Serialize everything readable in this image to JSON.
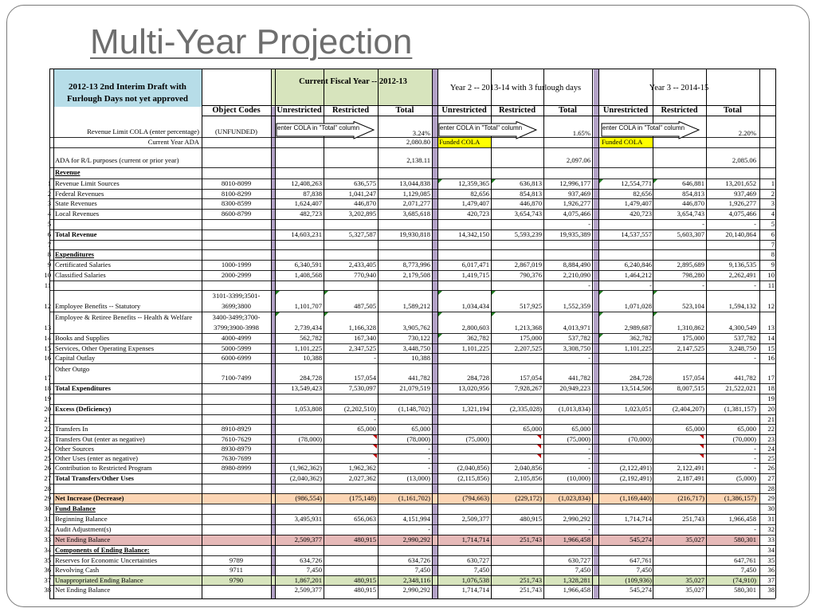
{
  "slide": {
    "title": "Multi-Year Projection"
  },
  "header": {
    "draft_title": "2012-13 2nd Interim Draft with Furlough Days not yet approved",
    "year1": "Current Fiscal Year -- 2012-13",
    "year2": "Year 2 -- 2013-14 with 3 furlough days",
    "year3": "Year 3 -- 2014-15",
    "object_codes": "Object Codes",
    "col_unrestricted": "Unrestricted",
    "col_restricted": "Restricted",
    "col_total": "Total",
    "col_unrestricted_y2": "Unrestricted",
    "col_restricted_y2": "Restricted",
    "col_total_y2": "Total",
    "col_unrestricted_y3": "Unrestricted",
    "col_restricted_y3": "Restricted",
    "col_total_y3": "Total"
  },
  "callouts": {
    "y1": "enter COLA in \"Total\" column",
    "y2": "enter COLA in \"Total\" column",
    "y3": "enter COLA in \"Total\" column"
  },
  "colors": {
    "header_blue": "#b7dde8",
    "header_green": "#d7e4bd",
    "divider_purple": "#b3a2c7",
    "yellow": "#ffff00",
    "orange": "#fcd5b4",
    "pink": "#e6b9b8",
    "green_row": "#d7e4bd",
    "title_gray": "#6e6e6e"
  },
  "rows": [
    {
      "label": "Revenue Limit COLA (enter percentage)",
      "code": "(UNFUNDED)",
      "v": [
        "",
        "",
        "3.24%",
        "",
        "",
        "1.65%",
        "",
        "",
        "2.20%"
      ]
    },
    {
      "label": "Current Year ADA",
      "code": "",
      "v": [
        "",
        "",
        "2,080.80",
        "Funded COLA",
        "",
        "",
        "Funded COLA",
        "",
        ""
      ]
    },
    {
      "label": "ADA for R/L purposes (current or prior year)",
      "code": "",
      "v": [
        "",
        "",
        "2,138.11",
        "",
        "",
        "2,097.06",
        "",
        "",
        "2,085.06"
      ]
    },
    {
      "label": "Revenue",
      "code": "",
      "v": [
        "",
        "",
        "",
        "",
        "",
        "",
        "",
        "",
        ""
      ]
    },
    {
      "num": "1",
      "label": "Revenue Limit Sources",
      "code": "8010-8099",
      "v": [
        "12,408,263",
        "636,575",
        "13,044,838",
        "12,359,365",
        "636,813",
        "12,996,177",
        "12,554,771",
        "646,881",
        "13,201,652"
      ]
    },
    {
      "num": "2",
      "label": "Federal Revenues",
      "code": "8100-8299",
      "v": [
        "87,838",
        "1,041,247",
        "1,129,085",
        "82,656",
        "854,813",
        "937,469",
        "82,656",
        "854,813",
        "937,469"
      ]
    },
    {
      "num": "3",
      "label": "State Revenues",
      "code": "8300-8599",
      "v": [
        "1,624,407",
        "446,870",
        "2,071,277",
        "1,479,407",
        "446,870",
        "1,926,277",
        "1,479,407",
        "446,870",
        "1,926,277"
      ]
    },
    {
      "num": "4",
      "label": "Local Revenues",
      "code": "8600-8799",
      "v": [
        "482,723",
        "3,202,895",
        "3,685,618",
        "420,723",
        "3,654,743",
        "4,075,466",
        "420,723",
        "3,654,743",
        "4,075,466"
      ]
    },
    {
      "num": "5",
      "label": "",
      "code": "",
      "v": [
        "",
        "",
        "",
        "",
        "",
        "-",
        "",
        "-",
        "-"
      ]
    },
    {
      "num": "6",
      "label": "Total Revenue",
      "code": "",
      "v": [
        "14,603,231",
        "5,327,587",
        "19,930,818",
        "14,342,150",
        "5,593,239",
        "19,935,389",
        "14,537,557",
        "5,603,307",
        "20,140,864"
      ]
    },
    {
      "num": "7",
      "label": "",
      "code": "",
      "v": [
        "",
        "",
        "",
        "",
        "",
        "",
        "",
        "",
        ""
      ]
    },
    {
      "num": "8",
      "label": "Expenditures",
      "code": "",
      "v": [
        "",
        "",
        "",
        "",
        "",
        "",
        "",
        "",
        ""
      ]
    },
    {
      "num": "9",
      "label": "Certificated Salaries",
      "code": "1000-1999",
      "v": [
        "6,340,591",
        "2,433,405",
        "8,773,996",
        "6,017,471",
        "2,867,019",
        "8,884,490",
        "6,240,846",
        "2,895,689",
        "9,136,535"
      ]
    },
    {
      "num": "10",
      "label": "Classified Salaries",
      "code": "2000-2999",
      "v": [
        "1,408,568",
        "770,940",
        "2,179,508",
        "1,419,715",
        "790,376",
        "2,210,090",
        "1,464,212",
        "798,280",
        "2,262,491"
      ]
    },
    {
      "num": "11",
      "label": "",
      "code": "",
      "v": [
        "",
        "",
        "",
        "",
        "",
        "-",
        "-",
        "-",
        "-"
      ]
    },
    {
      "num": "12",
      "label": "Employee Benefits -- Statutory",
      "code": "3101-3399;3501-3699;3800",
      "v": [
        "1,101,707",
        "487,505",
        "1,589,212",
        "1,034,434",
        "517,925",
        "1,552,359",
        "1,071,028",
        "523,104",
        "1,594,132"
      ]
    },
    {
      "num": "13",
      "label": "Employee & Retiree Benefits -- Health & Welfare",
      "code": "3400-3499;3700-3799;3900-3998",
      "v": [
        "2,739,434",
        "1,166,328",
        "3,905,762",
        "2,800,603",
        "1,213,368",
        "4,013,971",
        "2,989,687",
        "1,310,862",
        "4,300,549"
      ]
    },
    {
      "num": "14",
      "label": "Books and Supplies",
      "code": "4000-4999",
      "v": [
        "562,782",
        "167,340",
        "730,122",
        "362,782",
        "175,000",
        "537,782",
        "362,782",
        "175,000",
        "537,782"
      ]
    },
    {
      "num": "15",
      "label": "Services, Other Operating Expenses",
      "code": "5000-5999",
      "v": [
        "1,101,225",
        "2,347,525",
        "3,448,750",
        "1,101,225",
        "2,207,525",
        "3,308,750",
        "1,101,225",
        "2,147,525",
        "3,248,750"
      ]
    },
    {
      "num": "16",
      "label": "Capital Outlay",
      "code": "6000-6999",
      "v": [
        "10,388",
        "-",
        "10,388",
        "",
        "",
        "-",
        "",
        "",
        "-"
      ]
    },
    {
      "num": "17",
      "label": "Other Outgo",
      "code": "7100-7499",
      "v": [
        "284,728",
        "157,054",
        "441,782",
        "284,728",
        "157,054",
        "441,782",
        "284,728",
        "157,054",
        "441,782"
      ]
    },
    {
      "num": "18",
      "label": "Total Expenditures",
      "code": "",
      "v": [
        "13,549,423",
        "7,530,097",
        "21,079,519",
        "13,020,956",
        "7,928,267",
        "20,949,223",
        "13,514,506",
        "8,007,515",
        "21,522,021"
      ]
    },
    {
      "num": "19",
      "label": "",
      "code": "",
      "v": [
        "",
        "",
        "",
        "",
        "",
        "",
        "",
        "",
        ""
      ]
    },
    {
      "num": "20",
      "label": "Excess (Deficiency)",
      "code": "",
      "v": [
        "1,053,808",
        "(2,202,510)",
        "(1,148,702)",
        "1,321,194",
        "(2,335,028)",
        "(1,013,834)",
        "1,023,051",
        "(2,404,207)",
        "(1,381,157)"
      ]
    },
    {
      "num": "21",
      "label": "",
      "code": "",
      "v": [
        "",
        "-",
        "",
        "",
        "",
        "",
        "",
        "",
        ""
      ]
    },
    {
      "num": "22",
      "label": "Transfers In",
      "code": "8910-8929",
      "v": [
        "",
        "65,000",
        "65,000",
        "",
        "65,000",
        "65,000",
        "",
        "65,000",
        "65,000"
      ]
    },
    {
      "num": "23",
      "label": "Transfers Out (enter as negative)",
      "code": "7610-7629",
      "v": [
        "(78,000)",
        "",
        "(78,000)",
        "(75,000)",
        "",
        "(75,000)",
        "(70,000)",
        "",
        "(70,000)"
      ]
    },
    {
      "num": "24",
      "label": "Other Sources",
      "code": "8930-8979",
      "v": [
        "",
        "",
        "-",
        "",
        "",
        "-",
        "",
        "",
        "-"
      ]
    },
    {
      "num": "25",
      "label": "Other Uses (enter as negative)",
      "code": "7630-7699",
      "v": [
        "",
        "",
        "-",
        "",
        "",
        "-",
        "",
        "",
        "-"
      ]
    },
    {
      "num": "26",
      "label": "Contribution to Restricted Program",
      "code": "8980-8999",
      "v": [
        "(1,962,362)",
        "1,962,362",
        "-",
        "(2,040,856)",
        "2,040,856",
        "-",
        "(2,122,491)",
        "2,122,491",
        "-"
      ]
    },
    {
      "num": "27",
      "label": "Total Transfers/Other Uses",
      "code": "",
      "v": [
        "(2,040,362)",
        "2,027,362",
        "(13,000)",
        "(2,115,856)",
        "2,105,856",
        "(10,000)",
        "(2,192,491)",
        "2,187,491",
        "(5,000)"
      ]
    },
    {
      "num": "28",
      "label": "",
      "code": "",
      "v": [
        "",
        "",
        "",
        "",
        "",
        "",
        "",
        "",
        ""
      ]
    },
    {
      "num": "29",
      "label": "Net Increase (Decrease)",
      "code": "",
      "v": [
        "(986,554)",
        "(175,148)",
        "(1,161,702)",
        "(794,663)",
        "(229,172)",
        "(1,023,834)",
        "(1,169,440)",
        "(216,717)",
        "(1,386,157)"
      ]
    },
    {
      "num": "30",
      "label": "Fund Balance",
      "code": "",
      "v": [
        "",
        "",
        "",
        "",
        "",
        "",
        "",
        "",
        ""
      ]
    },
    {
      "num": "31",
      "label": "Beginning Balance",
      "code": "",
      "v": [
        "3,495,931",
        "656,063",
        "4,151,994",
        "2,509,377",
        "480,915",
        "2,990,292",
        "1,714,714",
        "251,743",
        "1,966,458"
      ]
    },
    {
      "num": "32",
      "label": "Audit Adjustment(s)",
      "code": "",
      "v": [
        "",
        "",
        "-",
        "",
        "",
        "-",
        "",
        "",
        "-"
      ]
    },
    {
      "num": "33",
      "label": "Net Ending Balance",
      "code": "",
      "v": [
        "2,509,377",
        "480,915",
        "2,990,292",
        "1,714,714",
        "251,743",
        "1,966,458",
        "545,274",
        "35,027",
        "580,301"
      ]
    },
    {
      "num": "34",
      "label": "Components of Ending Balance:",
      "code": "",
      "v": [
        "",
        "",
        "",
        "",
        "",
        "",
        "",
        "",
        ""
      ]
    },
    {
      "num": "35",
      "label": "Reserves for Economic Uncertainties",
      "code": "9789",
      "v": [
        "634,726",
        "",
        "634,726",
        "630,727",
        "",
        "630,727",
        "647,761",
        "",
        "647,761"
      ]
    },
    {
      "num": "36",
      "label": "Revolving Cash",
      "code": "9711",
      "v": [
        "7,450",
        "",
        "7,450",
        "7,450",
        "",
        "7,450",
        "7,450",
        "",
        "7,450"
      ]
    },
    {
      "num": "37",
      "label": "Unappropriated Ending Balance",
      "code": "9790",
      "v": [
        "1,867,201",
        "480,915",
        "2,348,116",
        "1,076,538",
        "251,743",
        "1,328,281",
        "(109,936)",
        "35,027",
        "(74,910)"
      ]
    },
    {
      "num": "38",
      "label": "Net Ending Balance",
      "code": "",
      "v": [
        "2,509,377",
        "480,915",
        "2,990,292",
        "1,714,714",
        "251,743",
        "1,966,458",
        "545,274",
        "35,027",
        "580,301"
      ]
    }
  ]
}
